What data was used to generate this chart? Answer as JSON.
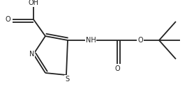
{
  "bg_color": "#ffffff",
  "line_color": "#222222",
  "line_width": 1.3,
  "font_size": 6.5,
  "fig_width": 2.68,
  "fig_height": 1.44,
  "dpi": 100,
  "N_label": "N",
  "S_label": "S",
  "NH_label": "NH",
  "O_label": "O",
  "OH_label": "OH",
  "O2_label": "O"
}
